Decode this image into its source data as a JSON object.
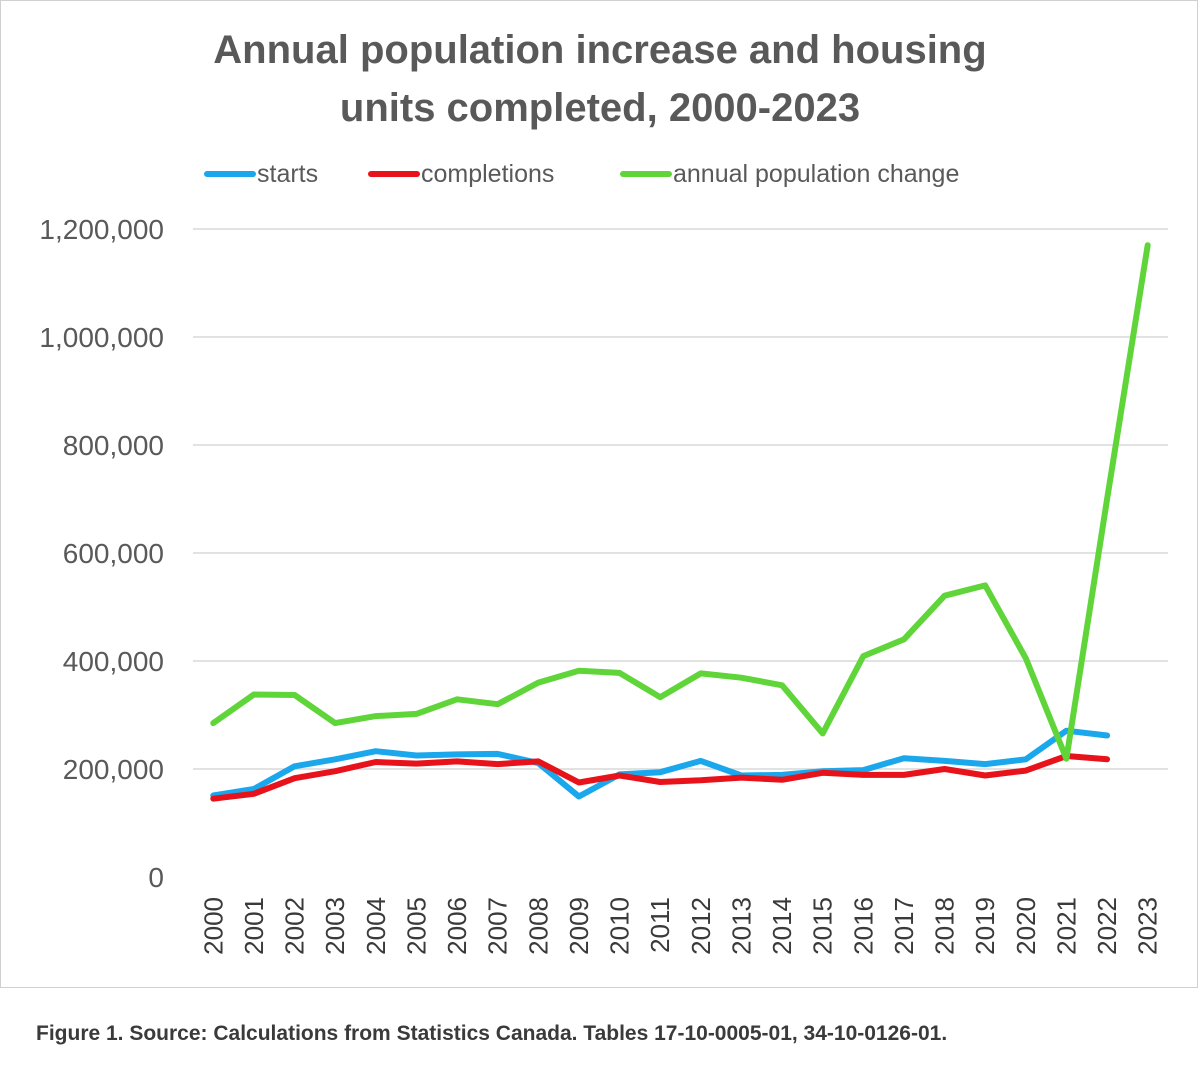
{
  "chart_data": {
    "type": "line",
    "title_lines": [
      "Annual population increase and housing",
      "units completed, 2000-2023"
    ],
    "categories": [
      "2000",
      "2001",
      "2002",
      "2003",
      "2004",
      "2005",
      "2006",
      "2007",
      "2008",
      "2009",
      "2010",
      "2011",
      "2012",
      "2013",
      "2014",
      "2015",
      "2016",
      "2017",
      "2018",
      "2019",
      "2020",
      "2021",
      "2022",
      "2023"
    ],
    "series": [
      {
        "name": "starts",
        "color": "#1aa7ec",
        "values": [
          151000,
          163000,
          205000,
          218000,
          233000,
          225000,
          227000,
          228000,
          211000,
          149000,
          190000,
          194000,
          215000,
          188000,
          189000,
          196000,
          198000,
          220000,
          215000,
          209000,
          218000,
          271000,
          262000,
          null
        ]
      },
      {
        "name": "completions",
        "color": "#e8121b",
        "values": [
          145000,
          154000,
          183000,
          196000,
          213000,
          210000,
          214000,
          209000,
          214000,
          175000,
          188000,
          176000,
          179000,
          184000,
          180000,
          193000,
          189000,
          189000,
          200000,
          188000,
          197000,
          224000,
          218000,
          null
        ]
      },
      {
        "name": "annual population change",
        "color": "#5fd53a",
        "values": [
          285000,
          338000,
          337000,
          285000,
          298000,
          302000,
          329000,
          320000,
          360000,
          382000,
          378000,
          333000,
          377000,
          369000,
          355000,
          266000,
          409000,
          440000,
          521000,
          540000,
          405000,
          219000,
          700000,
          1170000
        ]
      }
    ],
    "y_ticks": [
      "0",
      "200,000",
      "400,000",
      "600,000",
      "800,000",
      "1,000,000",
      "1,200,000"
    ],
    "ylim": [
      0,
      1200000
    ],
    "grid": true,
    "legend_position": "top-center"
  },
  "caption": "Figure 1. Source: Calculations from Statistics Canada. Tables 17-10-0005-01, 34-10-0126-01."
}
